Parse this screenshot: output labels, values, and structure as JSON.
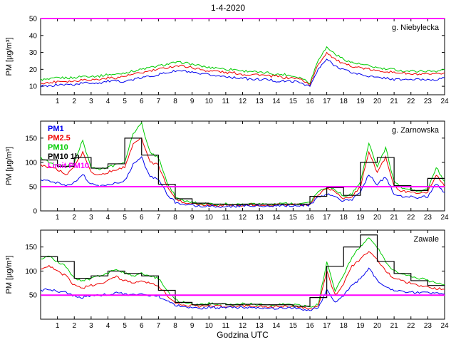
{
  "title": "1-4-2020",
  "xlabel": "Godzina UTC",
  "ylabel": "PM [µg/m³]",
  "colors": {
    "pm1": "#0000ee",
    "pm25": "#ee0000",
    "pm10": "#00cc00",
    "pm10_1h": "#000000",
    "limit": "#ff00ff"
  },
  "legend": {
    "position": "top-left-of-middle-subplot",
    "items": [
      {
        "label": "PM1",
        "color": "#0000ee"
      },
      {
        "label": "PM2.5",
        "color": "#ee0000"
      },
      {
        "label": "PM10",
        "color": "#00cc00"
      },
      {
        "label": "PM10 1h",
        "color": "#000000"
      },
      {
        "label": "Limit PM10",
        "color": "#ff00ff"
      }
    ]
  },
  "x_ticks": [
    1,
    2,
    3,
    4,
    5,
    6,
    7,
    8,
    9,
    10,
    11,
    12,
    13,
    14,
    15,
    16,
    17,
    18,
    19,
    20,
    21,
    22,
    23,
    24
  ],
  "chart_data": [
    {
      "type": "line",
      "station": "g. Niebylecka",
      "xlim": [
        0,
        24
      ],
      "x_start": 0,
      "x_step_h": 0.5,
      "ylim": [
        5,
        50
      ],
      "yticks": [
        10,
        20,
        30,
        40,
        50
      ],
      "limit_pm10": 50,
      "series": [
        {
          "name": "PM10",
          "color": "#00cc00",
          "style": "line",
          "values": [
            14,
            14,
            15,
            15,
            15,
            16,
            16,
            16,
            17,
            17,
            18,
            19,
            20,
            21,
            22,
            23,
            24,
            24,
            23,
            22,
            21,
            21,
            20,
            20,
            19,
            19,
            18,
            18,
            17,
            17,
            16,
            15,
            12,
            26,
            33,
            29,
            26,
            24,
            23,
            22,
            21,
            20,
            20,
            19,
            19,
            19,
            19,
            19,
            20
          ]
        },
        {
          "name": "PM2.5",
          "color": "#ee0000",
          "style": "line",
          "values": [
            12,
            12,
            13,
            13,
            13,
            14,
            14,
            14,
            15,
            15,
            16,
            17,
            18,
            19,
            20,
            21,
            22,
            22,
            21,
            20,
            19,
            19,
            18,
            18,
            17,
            17,
            17,
            16,
            16,
            15,
            15,
            14,
            11,
            23,
            30,
            26,
            23,
            22,
            21,
            20,
            19,
            19,
            18,
            18,
            17,
            17,
            17,
            17,
            18
          ]
        },
        {
          "name": "PM1",
          "color": "#0000ee",
          "style": "line",
          "values": [
            10,
            10,
            11,
            11,
            11,
            12,
            12,
            12,
            13,
            13,
            13,
            14,
            15,
            16,
            17,
            18,
            19,
            19,
            18,
            17,
            17,
            16,
            16,
            15,
            15,
            14,
            14,
            14,
            13,
            13,
            13,
            12,
            10,
            20,
            26,
            22,
            20,
            18,
            17,
            16,
            15,
            15,
            14,
            14,
            14,
            14,
            14,
            14,
            15
          ]
        }
      ]
    },
    {
      "type": "line",
      "station": "g. Zarnowska",
      "xlim": [
        0,
        24
      ],
      "x_start": 0,
      "x_step_h": 0.5,
      "ylim": [
        0,
        185
      ],
      "yticks": [
        0,
        50,
        100,
        150
      ],
      "limit_pm10": 50,
      "series": [
        {
          "name": "PM10",
          "color": "#00cc00",
          "style": "line",
          "values": [
            110,
            100,
            95,
            90,
            100,
            145,
            90,
            85,
            90,
            95,
            100,
            160,
            180,
            120,
            110,
            60,
            30,
            20,
            18,
            15,
            14,
            13,
            14,
            13,
            14,
            15,
            14,
            13,
            14,
            15,
            14,
            15,
            16,
            40,
            50,
            45,
            30,
            35,
            60,
            140,
            90,
            130,
            60,
            45,
            45,
            40,
            45,
            90,
            60
          ]
        },
        {
          "name": "PM2.5",
          "color": "#ee0000",
          "style": "line",
          "values": [
            95,
            90,
            85,
            75,
            90,
            120,
            80,
            75,
            80,
            85,
            90,
            140,
            150,
            100,
            95,
            50,
            25,
            17,
            15,
            13,
            12,
            11,
            12,
            11,
            12,
            13,
            12,
            11,
            12,
            13,
            12,
            13,
            14,
            35,
            45,
            40,
            26,
            30,
            50,
            120,
            80,
            110,
            50,
            40,
            40,
            35,
            40,
            75,
            50
          ]
        },
        {
          "name": "PM1",
          "color": "#0000ee",
          "style": "line",
          "values": [
            65,
            60,
            58,
            50,
            60,
            75,
            55,
            50,
            55,
            58,
            62,
            95,
            110,
            70,
            65,
            35,
            18,
            13,
            12,
            10,
            10,
            9,
            10,
            9,
            10,
            11,
            10,
            9,
            10,
            11,
            10,
            11,
            12,
            28,
            35,
            30,
            20,
            24,
            38,
            75,
            55,
            70,
            35,
            30,
            30,
            27,
            30,
            55,
            38
          ]
        },
        {
          "name": "PM10 1h",
          "color": "#000000",
          "style": "step-hourly",
          "values": [
            105,
            92,
            110,
            88,
            97,
            150,
            115,
            55,
            25,
            16,
            14,
            13,
            14,
            14,
            14,
            14,
            30,
            48,
            32,
            100,
            110,
            52,
            42,
            67
          ]
        }
      ]
    },
    {
      "type": "line",
      "station": "Zawale",
      "xlim": [
        0,
        24
      ],
      "x_start": 0,
      "x_step_h": 0.5,
      "ylim": [
        0,
        185
      ],
      "yticks": [
        50,
        100,
        150
      ],
      "limit_pm10": 50,
      "series": [
        {
          "name": "PM10",
          "color": "#00cc00",
          "style": "line",
          "values": [
            125,
            130,
            120,
            110,
            85,
            80,
            85,
            90,
            95,
            105,
            95,
            90,
            95,
            90,
            85,
            60,
            40,
            35,
            32,
            30,
            33,
            32,
            30,
            31,
            32,
            31,
            30,
            29,
            30,
            31,
            30,
            28,
            25,
            30,
            120,
            60,
            90,
            130,
            150,
            170,
            150,
            120,
            100,
            95,
            90,
            85,
            80,
            75,
            72
          ]
        },
        {
          "name": "PM2.5",
          "color": "#ee0000",
          "style": "line",
          "values": [
            105,
            110,
            100,
            90,
            70,
            65,
            70,
            75,
            80,
            88,
            80,
            75,
            80,
            75,
            70,
            50,
            35,
            30,
            28,
            26,
            28,
            27,
            26,
            27,
            28,
            27,
            26,
            25,
            26,
            27,
            26,
            24,
            22,
            26,
            100,
            50,
            75,
            110,
            125,
            140,
            125,
            100,
            85,
            80,
            75,
            70,
            68,
            64,
            62
          ]
        },
        {
          "name": "PM1",
          "color": "#0000ee",
          "style": "line",
          "values": [
            60,
            62,
            58,
            55,
            48,
            45,
            48,
            50,
            52,
            55,
            52,
            50,
            52,
            50,
            48,
            38,
            30,
            26,
            25,
            23,
            25,
            24,
            23,
            24,
            25,
            24,
            23,
            22,
            23,
            24,
            23,
            21,
            20,
            23,
            60,
            35,
            50,
            70,
            85,
            105,
            80,
            65,
            60,
            58,
            56,
            55,
            56,
            54,
            52
          ]
        },
        {
          "name": "PM10 1h",
          "color": "#000000",
          "style": "step-hourly",
          "values": [
            130,
            120,
            85,
            90,
            100,
            95,
            90,
            60,
            35,
            30,
            32,
            30,
            31,
            30,
            30,
            27,
            45,
            110,
            150,
            175,
            120,
            95,
            80,
            70
          ]
        }
      ]
    }
  ]
}
